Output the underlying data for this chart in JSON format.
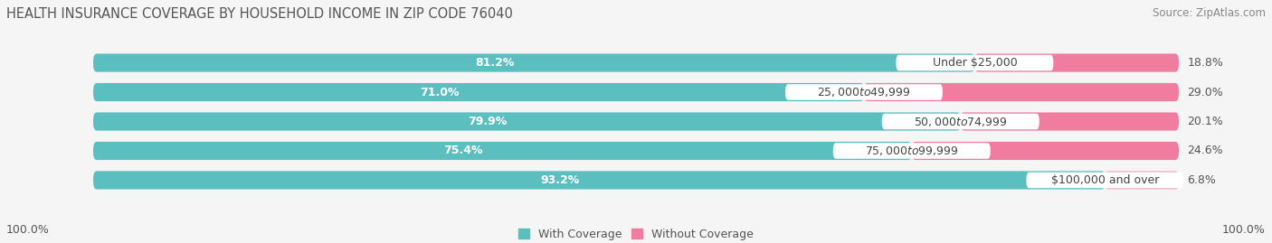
{
  "title": "HEALTH INSURANCE COVERAGE BY HOUSEHOLD INCOME IN ZIP CODE 76040",
  "source": "Source: ZipAtlas.com",
  "categories": [
    "Under $25,000",
    "$25,000 to $49,999",
    "$50,000 to $74,999",
    "$75,000 to $99,999",
    "$100,000 and over"
  ],
  "with_coverage": [
    81.2,
    71.0,
    79.9,
    75.4,
    93.2
  ],
  "without_coverage": [
    18.8,
    29.0,
    20.1,
    24.6,
    6.8
  ],
  "color_with": "#5bbfc0",
  "color_without": "#f07ca0",
  "color_without_light": "#f5aec5",
  "bg_color": "#f5f5f5",
  "bar_bg_color": "#e0e0e0",
  "row_bg_color": "#ebebeb",
  "title_fontsize": 10.5,
  "source_fontsize": 8.5,
  "label_fontsize": 9,
  "category_fontsize": 9,
  "legend_fontsize": 9,
  "footer_fontsize": 9
}
